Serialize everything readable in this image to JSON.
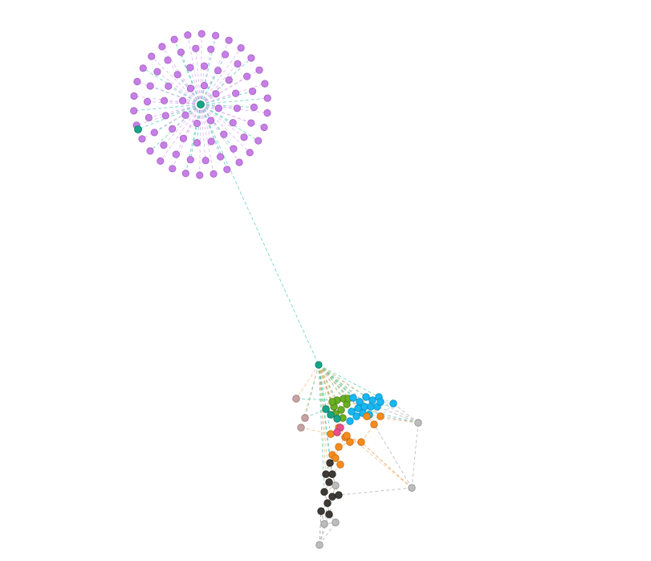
{
  "graph": {
    "clusters": [
      {
        "id": "purple",
        "color": "#c77ee6",
        "stroke": "#a463c2"
      },
      {
        "id": "teal",
        "color": "#17a589",
        "stroke": "#0e7a64"
      },
      {
        "id": "green",
        "color": "#6ab023",
        "stroke": "#4c8218"
      },
      {
        "id": "blue",
        "color": "#16b8f3",
        "stroke": "#0b8fc0"
      },
      {
        "id": "orange",
        "color": "#f48c1e",
        "stroke": "#c56c10"
      },
      {
        "id": "dark",
        "color": "#3e3a36",
        "stroke": "#26231f"
      },
      {
        "id": "gray",
        "color": "#bdbdbd",
        "stroke": "#8f8f8f"
      },
      {
        "id": "rose",
        "color": "#c9a3a3",
        "stroke": "#9e7a7a"
      },
      {
        "id": "pink",
        "color": "#e8508c",
        "stroke": "#b83a6c"
      }
    ],
    "edge_colors": {
      "teal": "#48c9b0",
      "purple": "#d9a6ef",
      "orange": "#f7b26b",
      "gray": "#a8a8a8",
      "blue": "#7fd3f5"
    }
  }
}
